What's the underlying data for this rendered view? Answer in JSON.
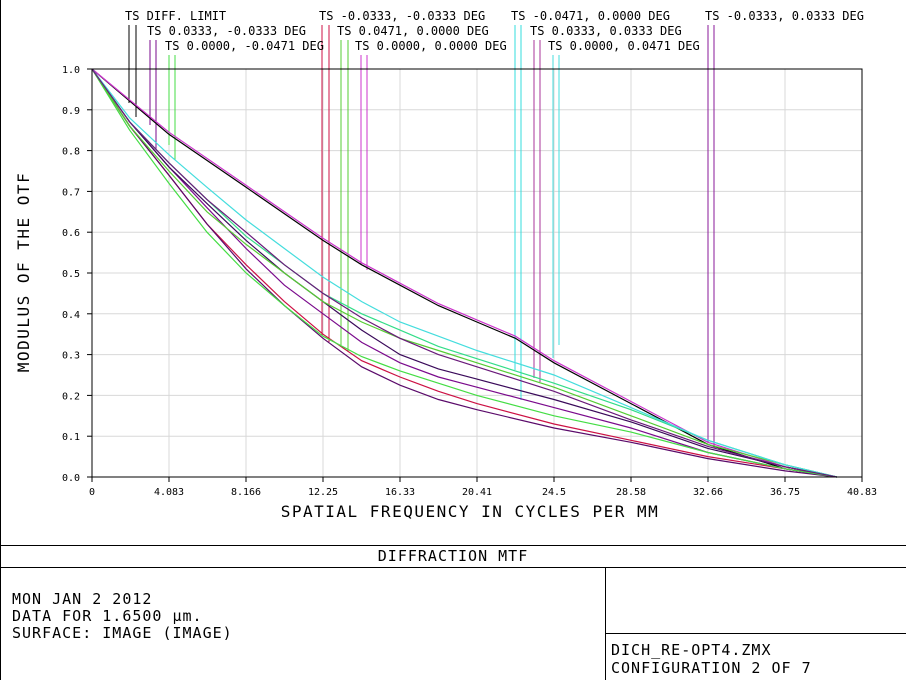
{
  "footer": {
    "title": "DIFFRACTION MTF",
    "date": "MON JAN 2 2012",
    "data_for": "DATA FOR 1.6500 µm.",
    "surface": "SURFACE: IMAGE (IMAGE)",
    "file": "DICH_RE-OPT4.ZMX",
    "configuration": "CONFIGURATION 2 OF 7"
  },
  "chart_data": {
    "type": "line",
    "xlabel": "SPATIAL FREQUENCY IN CYCLES PER MM",
    "ylabel": "MODULUS OF THE OTF",
    "xlim": [
      0,
      40.83
    ],
    "ylim": [
      0,
      1.0
    ],
    "grid": true,
    "x_ticks": [
      "0",
      "4.083",
      "8.166",
      "12.25",
      "16.33",
      "20.41",
      "24.5",
      "28.58",
      "32.66",
      "36.75",
      "40.83"
    ],
    "y_ticks": [
      "0.0",
      "0.1",
      "0.2",
      "0.3",
      "0.4",
      "0.5",
      "0.6",
      "0.7",
      "0.8",
      "0.9",
      "1.0"
    ],
    "legend": [
      {
        "prefix": "TS",
        "name": "DIFF. LIMIT",
        "color": "#000000"
      },
      {
        "prefix": "TS",
        "name": "0.0333, -0.0333 DEG",
        "color": "#7a0a8c"
      },
      {
        "prefix": "TS",
        "name": "0.0000, -0.0471 DEG",
        "color": "#44dd44"
      },
      {
        "prefix": "TS",
        "name": "-0.0333, -0.0333 DEG",
        "color": "#cc1144"
      },
      {
        "prefix": "TS",
        "name": "0.0471, 0.0000 DEG",
        "color": "#55cc33"
      },
      {
        "prefix": "TS",
        "name": "0.0000, 0.0000 DEG",
        "color": "#cc33cc"
      },
      {
        "prefix": "TS",
        "name": "-0.0471, 0.0000 DEG",
        "color": "#33dddd"
      },
      {
        "prefix": "TS",
        "name": "0.0333, 0.0333 DEG",
        "color": "#aa3399"
      },
      {
        "prefix": "TS",
        "name": "0.0000, 0.0471 DEG",
        "color": "#44dddd"
      },
      {
        "prefix": "TS",
        "name": "-0.0333, 0.0333 DEG",
        "color": "#8a1a99"
      }
    ],
    "series": [
      {
        "color": "#000000",
        "x": [
          0,
          4.08,
          8.17,
          12.25,
          14.3,
          16.33,
          18.37,
          20.41,
          22.45,
          24.5,
          28.58,
          32.66,
          36.75,
          39.5
        ],
        "y": [
          1.0,
          0.84,
          0.71,
          0.58,
          0.52,
          0.47,
          0.42,
          0.38,
          0.34,
          0.28,
          0.18,
          0.08,
          0.02,
          0.0
        ]
      },
      {
        "color": "#cc33cc",
        "x": [
          0,
          4.08,
          8.17,
          12.25,
          14.3,
          16.33,
          18.37,
          20.41,
          22.45,
          24.5,
          28.58,
          32.66,
          36.75,
          39.5
        ],
        "y": [
          1.0,
          0.845,
          0.715,
          0.585,
          0.525,
          0.475,
          0.425,
          0.385,
          0.345,
          0.285,
          0.185,
          0.085,
          0.025,
          0.0
        ]
      },
      {
        "color": "#7a0a8c",
        "x": [
          0,
          2.0,
          4.08,
          6.1,
          8.17,
          10.2,
          12.25,
          14.3,
          16.33,
          18.37,
          20.41,
          24.5,
          28.58,
          32.66,
          36.75,
          39.5
        ],
        "y": [
          1.0,
          0.87,
          0.76,
          0.66,
          0.56,
          0.47,
          0.4,
          0.33,
          0.28,
          0.245,
          0.22,
          0.17,
          0.12,
          0.06,
          0.02,
          0.0
        ]
      },
      {
        "color": "#3a0a5a",
        "x": [
          0,
          2.0,
          4.08,
          6.1,
          8.17,
          10.2,
          12.25,
          14.3,
          16.33,
          18.37,
          20.41,
          24.5,
          28.58,
          32.66,
          36.75,
          39.5
        ],
        "y": [
          1.0,
          0.87,
          0.76,
          0.67,
          0.58,
          0.5,
          0.43,
          0.36,
          0.3,
          0.265,
          0.24,
          0.19,
          0.135,
          0.07,
          0.025,
          0.0
        ]
      },
      {
        "color": "#cc1144",
        "x": [
          0,
          2.0,
          4.08,
          6.1,
          8.17,
          10.2,
          12.25,
          14.3,
          16.33,
          18.37,
          20.41,
          24.5,
          28.58,
          32.66,
          36.75,
          39.5
        ],
        "y": [
          1.0,
          0.86,
          0.74,
          0.62,
          0.52,
          0.43,
          0.35,
          0.285,
          0.245,
          0.21,
          0.18,
          0.13,
          0.09,
          0.05,
          0.02,
          0.0
        ]
      },
      {
        "color": "#5a0a6a",
        "x": [
          0,
          2.0,
          4.08,
          6.1,
          8.17,
          10.2,
          12.25,
          14.3,
          16.33,
          18.37,
          20.41,
          24.5,
          28.58,
          32.66,
          36.75,
          39.5
        ],
        "y": [
          1.0,
          0.86,
          0.74,
          0.62,
          0.51,
          0.42,
          0.34,
          0.27,
          0.225,
          0.19,
          0.165,
          0.12,
          0.085,
          0.045,
          0.015,
          0.0
        ]
      },
      {
        "color": "#44dd44",
        "x": [
          0,
          2.0,
          4.08,
          6.1,
          8.17,
          10.2,
          12.25,
          14.3,
          16.33,
          18.37,
          20.41,
          24.5,
          28.58,
          32.66,
          36.75,
          39.5
        ],
        "y": [
          1.0,
          0.85,
          0.72,
          0.6,
          0.5,
          0.42,
          0.345,
          0.295,
          0.26,
          0.23,
          0.2,
          0.15,
          0.11,
          0.06,
          0.02,
          0.0
        ]
      },
      {
        "color": "#55cc33",
        "x": [
          0,
          2.0,
          4.08,
          6.1,
          8.17,
          10.2,
          12.25,
          14.3,
          16.33,
          18.37,
          20.41,
          24.5,
          28.58,
          32.66,
          36.75,
          39.5
        ],
        "y": [
          1.0,
          0.86,
          0.75,
          0.65,
          0.57,
          0.5,
          0.43,
          0.38,
          0.34,
          0.31,
          0.28,
          0.22,
          0.15,
          0.08,
          0.03,
          0.0
        ]
      },
      {
        "color": "#33dd88",
        "x": [
          0,
          2.0,
          4.08,
          6.1,
          8.17,
          10.2,
          12.25,
          14.3,
          16.33,
          18.37,
          20.41,
          24.5,
          28.58,
          32.66,
          36.75,
          39.5
        ],
        "y": [
          1.0,
          0.87,
          0.77,
          0.68,
          0.59,
          0.52,
          0.45,
          0.4,
          0.36,
          0.32,
          0.29,
          0.23,
          0.165,
          0.09,
          0.03,
          0.0
        ]
      },
      {
        "color": "#44dddd",
        "x": [
          0,
          2.0,
          4.08,
          6.1,
          8.17,
          10.2,
          12.25,
          14.3,
          16.33,
          18.37,
          20.41,
          24.5,
          28.58,
          32.66,
          36.75,
          39.5
        ],
        "y": [
          1.0,
          0.88,
          0.79,
          0.71,
          0.63,
          0.56,
          0.49,
          0.43,
          0.38,
          0.345,
          0.31,
          0.25,
          0.17,
          0.09,
          0.03,
          0.0
        ]
      },
      {
        "color": "#6a1a7a",
        "x": [
          0,
          2.0,
          4.08,
          6.1,
          8.17,
          10.2,
          12.25,
          14.3,
          16.33,
          18.37,
          20.41,
          24.5,
          28.58,
          32.66,
          36.75,
          39.5
        ],
        "y": [
          1.0,
          0.87,
          0.77,
          0.68,
          0.6,
          0.52,
          0.45,
          0.39,
          0.34,
          0.3,
          0.27,
          0.21,
          0.14,
          0.075,
          0.025,
          0.0
        ]
      }
    ]
  }
}
